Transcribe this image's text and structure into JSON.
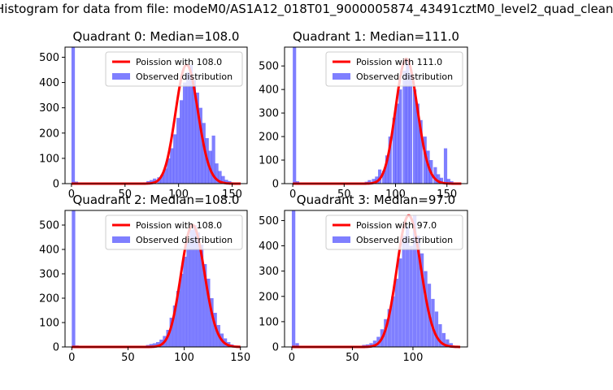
{
  "page": {
    "suptitle": "Histogram for data from file: modeM0/AS1A12_018T01_9000005874_43491cztM0_level2_quad_clean"
  },
  "colors": {
    "histogram": "#0000ff",
    "poisson": "#ff0000",
    "frame": "#000000"
  },
  "chart_data": [
    {
      "type": "bar",
      "title": "Quadrant 0: Median=108.0",
      "xlim": [
        -6,
        164
      ],
      "ylim": [
        0,
        540
      ],
      "xticks": [
        0,
        50,
        100,
        150
      ],
      "yticks": [
        0,
        100,
        200,
        300,
        400,
        500
      ],
      "legend": [
        "Poission with 108.0",
        "Observed distribution"
      ],
      "legend_position": "top-right",
      "median": 108,
      "bin_width": 3.2,
      "histogram": [
        [
          0,
          540
        ],
        [
          3,
          8
        ],
        [
          6,
          2
        ],
        [
          9,
          1
        ],
        [
          12,
          1
        ],
        [
          15,
          1
        ],
        [
          18,
          0
        ],
        [
          21,
          0
        ],
        [
          24,
          0
        ],
        [
          27,
          0
        ],
        [
          30,
          0
        ],
        [
          33,
          0
        ],
        [
          36,
          0
        ],
        [
          39,
          0
        ],
        [
          42,
          0
        ],
        [
          45,
          0
        ],
        [
          48,
          0
        ],
        [
          51,
          0
        ],
        [
          54,
          0
        ],
        [
          57,
          0
        ],
        [
          60,
          0
        ],
        [
          63,
          0
        ],
        [
          67,
          5
        ],
        [
          70,
          10
        ],
        [
          73,
          14
        ],
        [
          76,
          20
        ],
        [
          80,
          25
        ],
        [
          83,
          35
        ],
        [
          86,
          60
        ],
        [
          89,
          100
        ],
        [
          92,
          140
        ],
        [
          95,
          195
        ],
        [
          98,
          260
        ],
        [
          101,
          330
        ],
        [
          104,
          400
        ],
        [
          107,
          440
        ],
        [
          110,
          470
        ],
        [
          113,
          410
        ],
        [
          116,
          360
        ],
        [
          119,
          300
        ],
        [
          122,
          240
        ],
        [
          125,
          180
        ],
        [
          128,
          130
        ],
        [
          131,
          190
        ],
        [
          134,
          80
        ],
        [
          137,
          50
        ],
        [
          140,
          30
        ],
        [
          143,
          15
        ],
        [
          146,
          10
        ],
        [
          149,
          5
        ],
        [
          152,
          3
        ],
        [
          155,
          2
        ]
      ]
    },
    {
      "type": "bar",
      "title": "Quadrant 1: Median=111.0",
      "xlim": [
        -8,
        170
      ],
      "ylim": [
        0,
        580
      ],
      "xticks": [
        0,
        50,
        100,
        150
      ],
      "yticks": [
        0,
        100,
        200,
        300,
        400,
        500
      ],
      "legend": [
        "Poission with 111.0",
        "Observed distribution"
      ],
      "legend_position": "top-right",
      "median": 111,
      "bin_width": 3.3,
      "histogram": [
        [
          0,
          580
        ],
        [
          3,
          10
        ],
        [
          6,
          3
        ],
        [
          9,
          1
        ],
        [
          12,
          1
        ],
        [
          15,
          0
        ],
        [
          18,
          0
        ],
        [
          21,
          0
        ],
        [
          24,
          0
        ],
        [
          27,
          0
        ],
        [
          30,
          0
        ],
        [
          33,
          0
        ],
        [
          36,
          0
        ],
        [
          39,
          0
        ],
        [
          42,
          0
        ],
        [
          45,
          0
        ],
        [
          48,
          0
        ],
        [
          51,
          0
        ],
        [
          54,
          0
        ],
        [
          57,
          0
        ],
        [
          60,
          0
        ],
        [
          63,
          0
        ],
        [
          66,
          0
        ],
        [
          70,
          8
        ],
        [
          73,
          15
        ],
        [
          77,
          20
        ],
        [
          80,
          30
        ],
        [
          83,
          60
        ],
        [
          87,
          55
        ],
        [
          90,
          120
        ],
        [
          93,
          200
        ],
        [
          97,
          280
        ],
        [
          100,
          340
        ],
        [
          103,
          400
        ],
        [
          107,
          480
        ],
        [
          110,
          530
        ],
        [
          113,
          470
        ],
        [
          117,
          400
        ],
        [
          120,
          340
        ],
        [
          123,
          270
        ],
        [
          127,
          200
        ],
        [
          130,
          140
        ],
        [
          133,
          100
        ],
        [
          137,
          70
        ],
        [
          140,
          40
        ],
        [
          143,
          25
        ],
        [
          147,
          150
        ],
        [
          150,
          20
        ],
        [
          153,
          10
        ],
        [
          157,
          5
        ],
        [
          160,
          2
        ]
      ]
    },
    {
      "type": "bar",
      "title": "Quadrant 2: Median=108.0",
      "xlim": [
        -6,
        156
      ],
      "ylim": [
        0,
        560
      ],
      "xticks": [
        0,
        50,
        100,
        150
      ],
      "yticks": [
        0,
        100,
        200,
        300,
        400,
        500
      ],
      "legend": [
        "Poission with 108.0",
        "Observed distribution"
      ],
      "legend_position": "top-right",
      "median": 108,
      "bin_width": 3.1,
      "histogram": [
        [
          0,
          560
        ],
        [
          3,
          6
        ],
        [
          6,
          2
        ],
        [
          9,
          1
        ],
        [
          12,
          0
        ],
        [
          15,
          0
        ],
        [
          18,
          0
        ],
        [
          21,
          0
        ],
        [
          24,
          0
        ],
        [
          27,
          0
        ],
        [
          30,
          0
        ],
        [
          33,
          0
        ],
        [
          36,
          0
        ],
        [
          39,
          0
        ],
        [
          42,
          0
        ],
        [
          45,
          0
        ],
        [
          48,
          0
        ],
        [
          51,
          0
        ],
        [
          54,
          0
        ],
        [
          57,
          0
        ],
        [
          60,
          0
        ],
        [
          63,
          5
        ],
        [
          66,
          8
        ],
        [
          69,
          12
        ],
        [
          72,
          15
        ],
        [
          75,
          20
        ],
        [
          78,
          30
        ],
        [
          81,
          45
        ],
        [
          84,
          70
        ],
        [
          87,
          120
        ],
        [
          90,
          170
        ],
        [
          93,
          230
        ],
        [
          96,
          300
        ],
        [
          99,
          370
        ],
        [
          102,
          430
        ],
        [
          105,
          480
        ],
        [
          108,
          500
        ],
        [
          111,
          470
        ],
        [
          114,
          420
        ],
        [
          117,
          340
        ],
        [
          120,
          280
        ],
        [
          123,
          200
        ],
        [
          126,
          140
        ],
        [
          129,
          90
        ],
        [
          132,
          55
        ],
        [
          135,
          35
        ],
        [
          138,
          20
        ],
        [
          141,
          10
        ],
        [
          144,
          5
        ],
        [
          147,
          3
        ]
      ]
    },
    {
      "type": "bar",
      "title": "Quadrant 3: Median=97.0",
      "xlim": [
        -6,
        145
      ],
      "ylim": [
        0,
        540
      ],
      "xticks": [
        0,
        50,
        100
      ],
      "yticks": [
        0,
        100,
        200,
        300,
        400,
        500
      ],
      "legend": [
        "Poission with 97.0",
        "Observed distribution"
      ],
      "legend_position": "top-right",
      "median": 97,
      "bin_width": 2.9,
      "histogram": [
        [
          0,
          540
        ],
        [
          3,
          15
        ],
        [
          6,
          3
        ],
        [
          9,
          1
        ],
        [
          12,
          0
        ],
        [
          15,
          0
        ],
        [
          18,
          0
        ],
        [
          21,
          0
        ],
        [
          24,
          0
        ],
        [
          27,
          0
        ],
        [
          30,
          0
        ],
        [
          33,
          0
        ],
        [
          36,
          0
        ],
        [
          39,
          0
        ],
        [
          42,
          0
        ],
        [
          45,
          0
        ],
        [
          48,
          0
        ],
        [
          51,
          0
        ],
        [
          54,
          0
        ],
        [
          57,
          0
        ],
        [
          58,
          8
        ],
        [
          61,
          10
        ],
        [
          64,
          15
        ],
        [
          67,
          25
        ],
        [
          70,
          40
        ],
        [
          73,
          70
        ],
        [
          76,
          110
        ],
        [
          79,
          150
        ],
        [
          82,
          200
        ],
        [
          85,
          270
        ],
        [
          88,
          350
        ],
        [
          91,
          440
        ],
        [
          94,
          480
        ],
        [
          97,
          400
        ],
        [
          100,
          520
        ],
        [
          103,
          440
        ],
        [
          106,
          370
        ],
        [
          109,
          300
        ],
        [
          112,
          250
        ],
        [
          115,
          190
        ],
        [
          118,
          140
        ],
        [
          121,
          90
        ],
        [
          124,
          55
        ],
        [
          127,
          30
        ],
        [
          130,
          15
        ],
        [
          133,
          5
        ]
      ]
    }
  ]
}
